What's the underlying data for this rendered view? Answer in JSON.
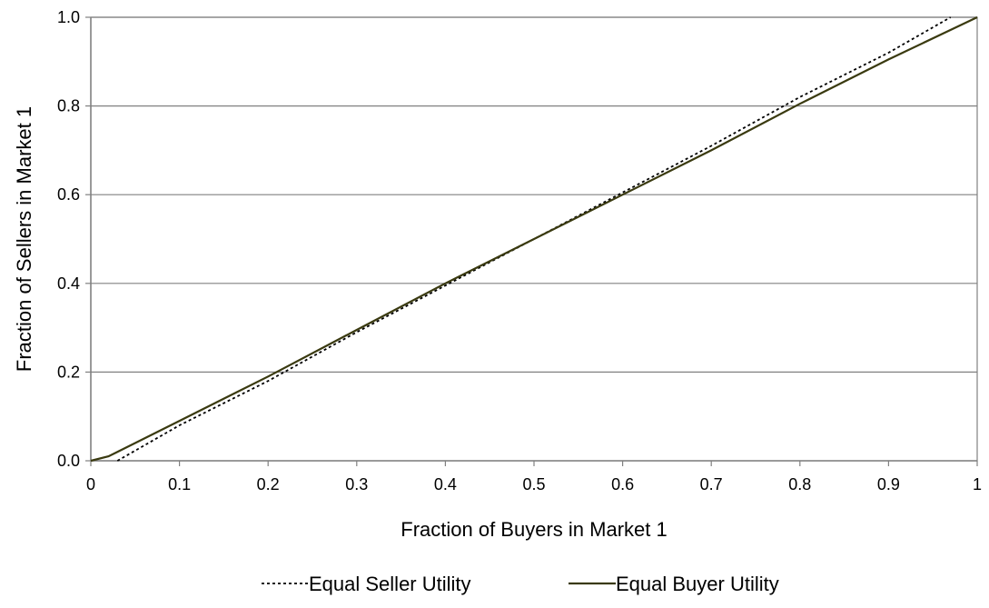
{
  "chart_data": {
    "type": "line",
    "title": "",
    "xlabel": "Fraction of Buyers in Market 1",
    "ylabel": "Fraction of Sellers in Market 1",
    "xlim": [
      0,
      1
    ],
    "ylim": [
      0,
      1
    ],
    "x_ticks": [
      0,
      0.1,
      0.2,
      0.3,
      0.4,
      0.5,
      0.6,
      0.7,
      0.8,
      0.9,
      1
    ],
    "x_tick_labels": [
      "0",
      "0.1",
      "0.2",
      "0.3",
      "0.4",
      "0.5",
      "0.6",
      "0.7",
      "0.8",
      "0.9",
      "1"
    ],
    "y_ticks": [
      0,
      0.2,
      0.4,
      0.6,
      0.8,
      1.0
    ],
    "y_tick_labels": [
      "0.0",
      "0.2",
      "0.4",
      "0.6",
      "0.8",
      "1.0"
    ],
    "grid": "horizontal",
    "legend_position": "bottom",
    "series": [
      {
        "name": "Equal Seller Utility",
        "style": "dotted",
        "color": "#000000",
        "x": [
          0.03,
          0.1,
          0.2,
          0.3,
          0.4,
          0.5,
          0.6,
          0.7,
          0.8,
          0.9,
          0.97
        ],
        "y": [
          0.0,
          0.08,
          0.18,
          0.29,
          0.395,
          0.5,
          0.605,
          0.71,
          0.82,
          0.92,
          1.0
        ]
      },
      {
        "name": "Equal Buyer Utility",
        "style": "solid",
        "color": "#3a3a10",
        "x": [
          0.0,
          0.02,
          0.05,
          0.1,
          0.2,
          0.3,
          0.4,
          0.5,
          0.6,
          0.7,
          0.8,
          0.9,
          1.0
        ],
        "y": [
          0.0,
          0.01,
          0.04,
          0.09,
          0.19,
          0.295,
          0.4,
          0.5,
          0.6,
          0.7,
          0.805,
          0.905,
          1.0
        ]
      }
    ]
  }
}
